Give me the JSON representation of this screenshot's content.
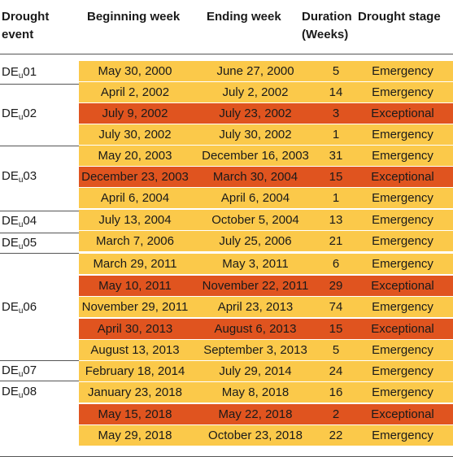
{
  "headers": {
    "event_line1": "Drought",
    "event_line2": "event",
    "beginning": "Beginning week",
    "ending": "Ending week",
    "duration_line1": "Duration",
    "duration_line2": "(Weeks)",
    "stage": "Drought stage"
  },
  "events": [
    {
      "prefix": "DE",
      "sub": "u",
      "num": "01"
    },
    {
      "prefix": "DE",
      "sub": "u",
      "num": "02"
    },
    {
      "prefix": "DE",
      "sub": "u",
      "num": "03"
    },
    {
      "prefix": "DE",
      "sub": "u",
      "num": "04"
    },
    {
      "prefix": "DE",
      "sub": "u",
      "num": "05"
    },
    {
      "prefix": "DE",
      "sub": "u",
      "num": "06"
    },
    {
      "prefix": "DE",
      "sub": "u",
      "num": "07"
    },
    {
      "prefix": "DE",
      "sub": "u",
      "num": "08"
    }
  ],
  "rows": [
    {
      "event": "DEu01",
      "beginning": "May 30, 2000",
      "ending": "June 27, 2000",
      "duration": "5",
      "stage": "Emergency"
    },
    {
      "event": "DEu02",
      "beginning": "April 2, 2002",
      "ending": "July 2, 2002",
      "duration": "14",
      "stage": "Emergency"
    },
    {
      "event": "DEu02",
      "beginning": "July 9, 2002",
      "ending": "July 23, 2002",
      "duration": "3",
      "stage": "Exceptional"
    },
    {
      "event": "DEu02",
      "beginning": "July 30, 2002",
      "ending": "July 30, 2002",
      "duration": "1",
      "stage": "Emergency"
    },
    {
      "event": "DEu03",
      "beginning": "May 20, 2003",
      "ending": "December 16, 2003",
      "duration": "31",
      "stage": "Emergency"
    },
    {
      "event": "DEu03",
      "beginning": "December 23, 2003",
      "ending": "March 30, 2004",
      "duration": "15",
      "stage": "Exceptional"
    },
    {
      "event": "DEu03",
      "beginning": "April 6, 2004",
      "ending": "April 6, 2004",
      "duration": "1",
      "stage": "Emergency"
    },
    {
      "event": "DEu04",
      "beginning": "July 13, 2004",
      "ending": "October 5, 2004",
      "duration": "13",
      "stage": "Emergency"
    },
    {
      "event": "DEu05",
      "beginning": "March 7, 2006",
      "ending": "July 25, 2006",
      "duration": "21",
      "stage": "Emergency"
    },
    {
      "event": "DEu06",
      "beginning": "March 29, 2011",
      "ending": "May 3, 2011",
      "duration": "6",
      "stage": "Emergency"
    },
    {
      "event": "DEu06",
      "beginning": "May 10, 2011",
      "ending": "November 22, 2011",
      "duration": "29",
      "stage": "Exceptional"
    },
    {
      "event": "DEu06",
      "beginning": "November 29, 2011",
      "ending": "April 23, 2013",
      "duration": "74",
      "stage": "Emergency"
    },
    {
      "event": "DEu06",
      "beginning": "April 30, 2013",
      "ending": "August 6, 2013",
      "duration": "15",
      "stage": "Exceptional"
    },
    {
      "event": "DEu06",
      "beginning": "August 13, 2013",
      "ending": "September 3, 2013",
      "duration": "5",
      "stage": "Emergency"
    },
    {
      "event": "DEu07",
      "beginning": "February 18, 2014",
      "ending": "July 29, 2014",
      "duration": "24",
      "stage": "Emergency"
    },
    {
      "event": "DEu08",
      "beginning": "January 23, 2018",
      "ending": "May 8, 2018",
      "duration": "16",
      "stage": "Emergency"
    },
    {
      "event": "DEu08",
      "beginning": "May 15, 2018",
      "ending": "May 22, 2018",
      "duration": "2",
      "stage": "Exceptional"
    },
    {
      "event": "DEu08",
      "beginning": "May 29, 2018",
      "ending": "October 23, 2018",
      "duration": "22",
      "stage": "Emergency"
    }
  ],
  "colors": {
    "emergency": "#fbc94a",
    "exceptional": "#e0541f"
  }
}
